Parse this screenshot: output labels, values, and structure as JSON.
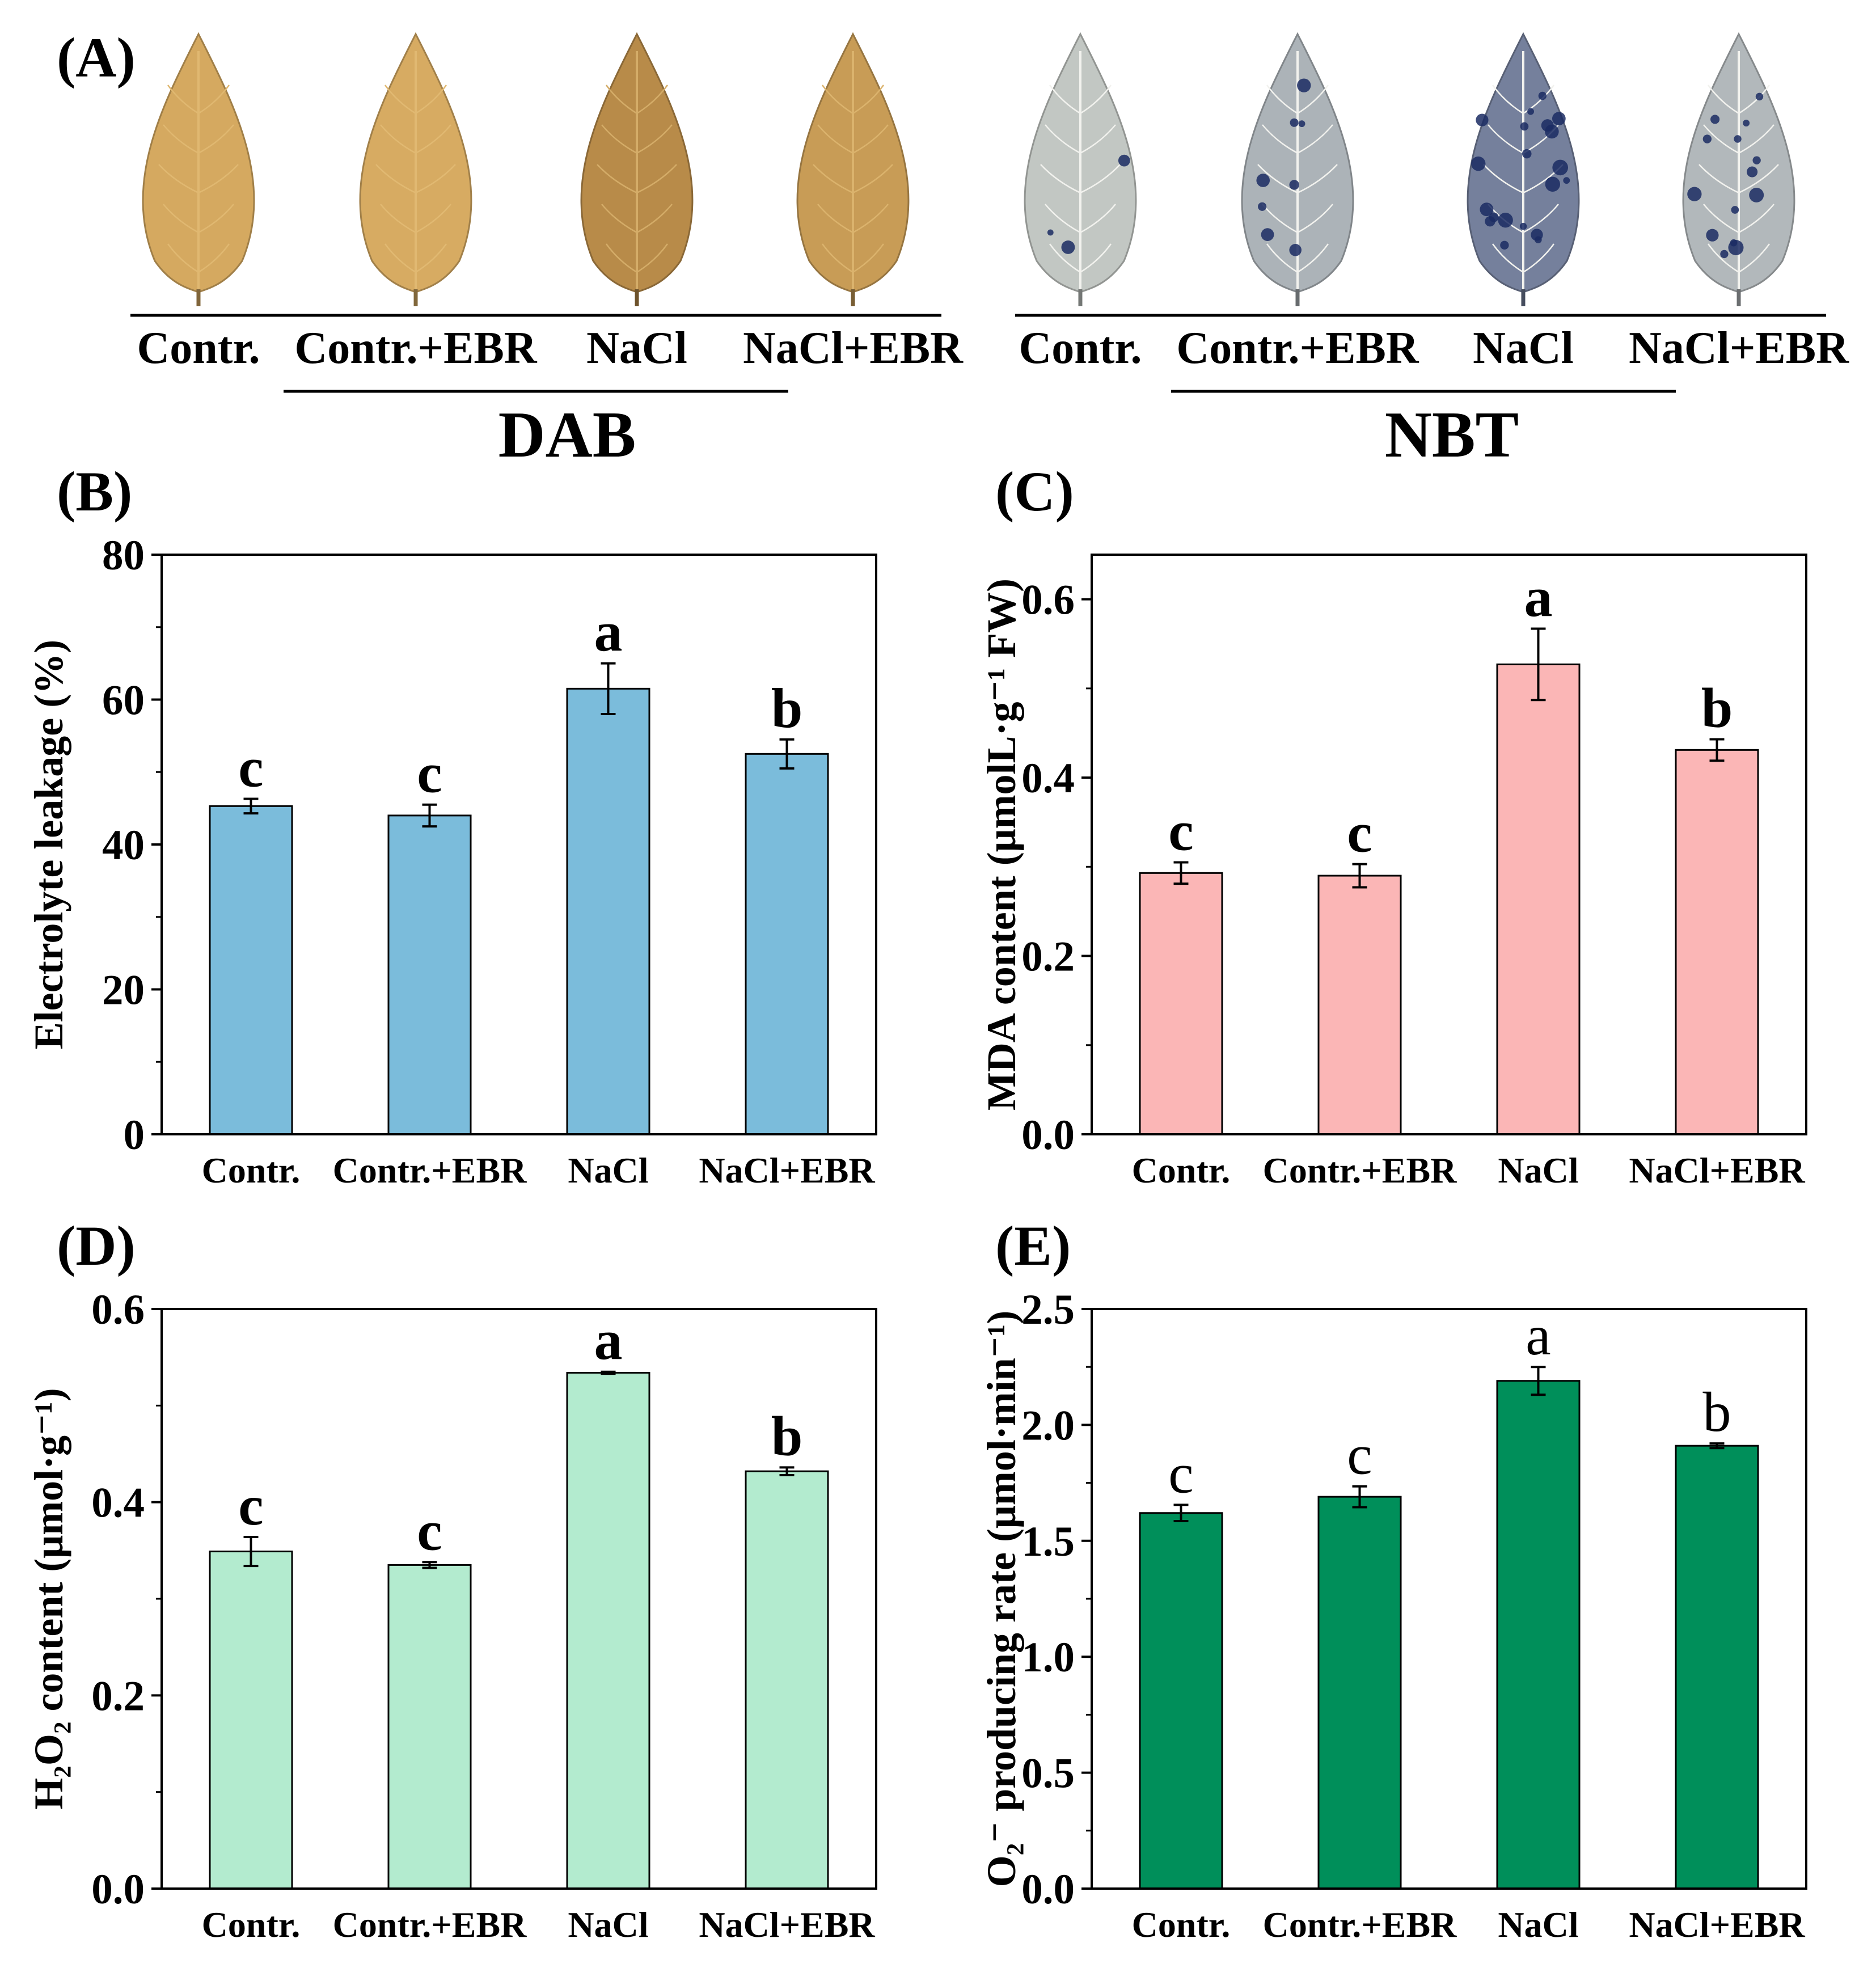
{
  "colors": {
    "leaf_dab": "#d9ad63",
    "leaf_dab_dark": "#a87a3c",
    "leaf_nbt": "#d3d6cc",
    "leaf_nbt_dark": "#3f4f80",
    "spot": "#1b2b63",
    "axis": "#000000"
  },
  "panel_a": {
    "label": "(A)",
    "dab": {
      "title": "DAB",
      "leaves": [
        {
          "name": "Contr.",
          "stain_level": 0.1,
          "spots": 0
        },
        {
          "name": "Contr.+EBR",
          "stain_level": 0.05,
          "spots": 0
        },
        {
          "name": "NaCl",
          "stain_level": 0.9,
          "spots": 0
        },
        {
          "name": "NaCl+EBR",
          "stain_level": 0.45,
          "spots": 0
        }
      ]
    },
    "nbt": {
      "title": "NBT",
      "leaves": [
        {
          "name": "Contr.",
          "stain_level": 0.15,
          "spots": 3
        },
        {
          "name": "Contr.+EBR",
          "stain_level": 0.35,
          "spots": 8
        },
        {
          "name": "NaCl",
          "stain_level": 0.85,
          "spots": 20
        },
        {
          "name": "NaCl+EBR",
          "stain_level": 0.3,
          "spots": 14
        }
      ]
    }
  },
  "chart_data": [
    {
      "panel": "(B)",
      "type": "bar",
      "title": "",
      "categories": [
        "Contr.",
        "Contr.+EBR",
        "NaCl",
        "NaCl+EBR"
      ],
      "values": [
        45.3,
        44.0,
        61.5,
        52.5
      ],
      "errors": [
        1.0,
        1.5,
        3.5,
        2.0
      ],
      "letters": [
        "c",
        "c",
        "a",
        "b"
      ],
      "letters_bold": true,
      "ylabel": "Electrolyte leakage (%)",
      "ylim": [
        0,
        80
      ],
      "yticks": [
        "0",
        "20",
        "40",
        "60",
        "80"
      ],
      "ytick_values": [
        0,
        20,
        40,
        60,
        80
      ],
      "bar_color": "#7bbcdb"
    },
    {
      "panel": "(C)",
      "type": "bar",
      "title": "",
      "categories": [
        "Contr.",
        "Contr.+EBR",
        "NaCl",
        "NaCl+EBR"
      ],
      "values": [
        0.293,
        0.29,
        0.527,
        0.431
      ],
      "errors": [
        0.012,
        0.013,
        0.04,
        0.012
      ],
      "letters": [
        "c",
        "c",
        "a",
        "b"
      ],
      "letters_bold": true,
      "ylabel": "MDA content (μmolL·g⁻¹ FW)",
      "ylim": [
        0,
        0.65
      ],
      "yticks": [
        "0.0",
        "0.2",
        "0.4",
        "0.6"
      ],
      "ytick_values": [
        0,
        0.2,
        0.4,
        0.6
      ],
      "bar_color": "#fbb6b6"
    },
    {
      "panel": "(D)",
      "type": "bar",
      "title": "",
      "categories": [
        "Contr.",
        "Contr.+EBR",
        "NaCl",
        "NaCl+EBR"
      ],
      "values": [
        0.349,
        0.335,
        0.534,
        0.432
      ],
      "errors": [
        0.015,
        0.003,
        0.001,
        0.004
      ],
      "letters": [
        "c",
        "c",
        "a",
        "b"
      ],
      "letters_bold": true,
      "ylabel": "H₂O₂ content (μmol·g⁻¹)",
      "ylim": [
        0,
        0.6
      ],
      "yticks": [
        "0.0",
        "0.2",
        "0.4",
        "0.6"
      ],
      "ytick_values": [
        0,
        0.2,
        0.4,
        0.6
      ],
      "bar_color": "#b3ebcf"
    },
    {
      "panel": "(E)",
      "type": "bar",
      "title": "",
      "categories": [
        "Contr.",
        "Contr.+EBR",
        "NaCl",
        "NaCl+EBR"
      ],
      "values": [
        1.62,
        1.69,
        2.19,
        1.91
      ],
      "errors": [
        0.035,
        0.045,
        0.06,
        0.01
      ],
      "letters": [
        "c",
        "c",
        "a",
        "b"
      ],
      "letters_bold": false,
      "ylabel": "O₂⁻ producing rate (μmol·min⁻¹)",
      "ylim": [
        0,
        2.5
      ],
      "yticks": [
        "0.0",
        "0.5",
        "1.0",
        "1.5",
        "2.0",
        "2.5"
      ],
      "ytick_values": [
        0,
        0.5,
        1,
        1.5,
        2,
        2.5
      ],
      "bar_color": "#008f5a"
    }
  ]
}
